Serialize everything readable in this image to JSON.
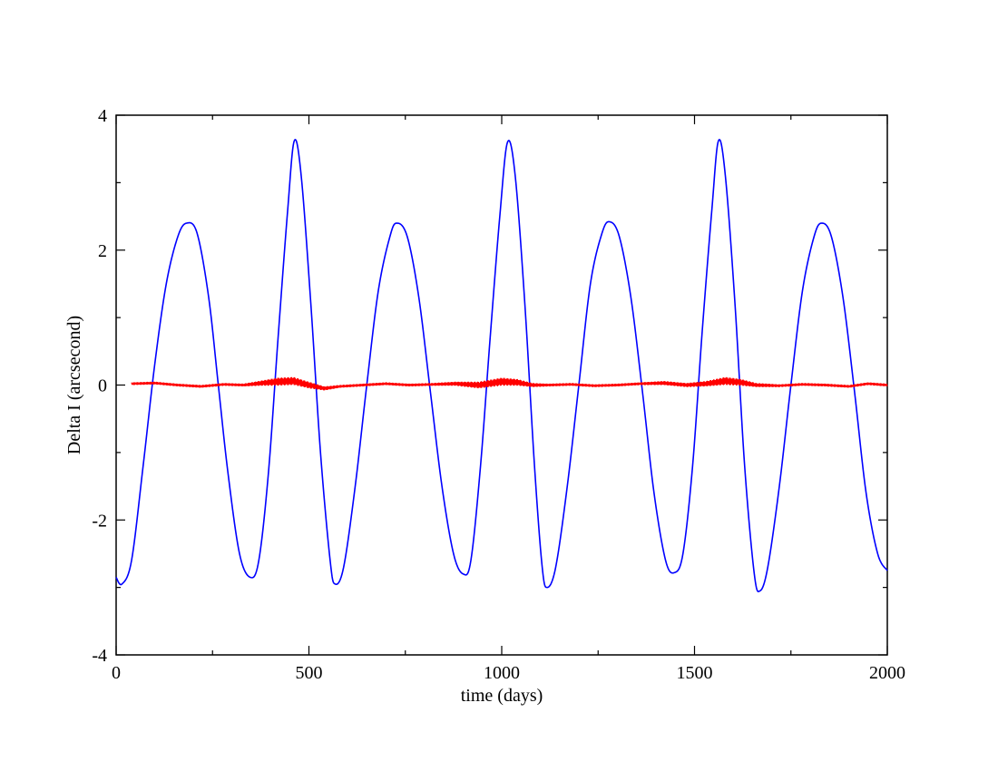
{
  "chart_data": {
    "type": "line",
    "title": "",
    "xlabel": "time (days)",
    "ylabel": "Delta I (arcsecond)",
    "xlim": [
      0,
      2000
    ],
    "ylim": [
      -4,
      4
    ],
    "x_ticks": [
      0,
      500,
      1000,
      1500,
      2000
    ],
    "x_tick_labels": [
      "0",
      "500",
      "1000",
      "1500",
      "2000"
    ],
    "y_ticks": [
      -4,
      -2,
      0,
      2,
      4
    ],
    "y_tick_labels": [
      "-4",
      "-2",
      "0",
      "2",
      "4"
    ],
    "x_minor_step": 250,
    "y_minor_step": 1,
    "grid": false,
    "legend": "none",
    "series": [
      {
        "color": "#0000ff",
        "x": [
          0,
          15,
          40,
          70,
          100,
          130,
          160,
          183,
          210,
          240,
          265,
          290,
          320,
          348,
          370,
          395,
          420,
          445,
          462,
          480,
          505,
          530,
          555,
          568,
          590,
          620,
          650,
          680,
          710,
          728,
          755,
          785,
          815,
          845,
          875,
          900,
          920,
          945,
          970,
          995,
          1015,
          1035,
          1060,
          1085,
          1105,
          1118,
          1140,
          1170,
          1200,
          1230,
          1260,
          1280,
          1305,
          1335,
          1365,
          1395,
          1425,
          1448,
          1470,
          1495,
          1520,
          1545,
          1562,
          1580,
          1605,
          1630,
          1655,
          1670,
          1690,
          1720,
          1750,
          1780,
          1810,
          1830,
          1855,
          1885,
          1915,
          1945,
          1975,
          2000
        ],
        "y": [
          -2.85,
          -2.95,
          -2.6,
          -1.2,
          0.3,
          1.5,
          2.2,
          2.4,
          2.25,
          1.3,
          0.0,
          -1.3,
          -2.5,
          -2.85,
          -2.6,
          -1.3,
          0.7,
          2.6,
          3.62,
          3.1,
          1.2,
          -1.0,
          -2.6,
          -2.95,
          -2.7,
          -1.5,
          0.0,
          1.4,
          2.2,
          2.4,
          2.2,
          1.3,
          -0.1,
          -1.5,
          -2.5,
          -2.8,
          -2.6,
          -1.2,
          0.7,
          2.5,
          3.6,
          3.1,
          1.2,
          -1.2,
          -2.7,
          -3.0,
          -2.7,
          -1.5,
          0.0,
          1.5,
          2.25,
          2.42,
          2.2,
          1.3,
          -0.1,
          -1.6,
          -2.6,
          -2.78,
          -2.5,
          -1.2,
          0.8,
          2.6,
          3.62,
          3.1,
          1.2,
          -1.2,
          -2.8,
          -3.05,
          -2.7,
          -1.5,
          0.0,
          1.4,
          2.2,
          2.4,
          2.2,
          1.3,
          -0.1,
          -1.6,
          -2.5,
          -2.75
        ]
      },
      {
        "color": "#ff0000",
        "x": [
          40,
          100,
          160,
          220,
          280,
          330,
          380,
          420,
          460,
          500,
          540,
          580,
          640,
          700,
          760,
          820,
          880,
          940,
          1000,
          1040,
          1080,
          1120,
          1180,
          1240,
          1300,
          1360,
          1420,
          1480,
          1530,
          1580,
          1620,
          1660,
          1720,
          1780,
          1840,
          1900,
          1950,
          2000
        ],
        "y": [
          0.02,
          0.03,
          0.0,
          -0.02,
          0.01,
          0.0,
          0.03,
          0.05,
          0.06,
          0.0,
          -0.05,
          -0.02,
          0.0,
          0.02,
          0.0,
          0.01,
          0.02,
          0.0,
          0.05,
          0.04,
          0.0,
          0.0,
          0.01,
          -0.01,
          0.0,
          0.02,
          0.03,
          0.0,
          0.02,
          0.06,
          0.04,
          0.0,
          -0.01,
          0.01,
          0.0,
          -0.02,
          0.02,
          0.0
        ],
        "noise_amplitude": [
          0.02,
          0.02,
          0.02,
          0.02,
          0.02,
          0.02,
          0.04,
          0.06,
          0.06,
          0.05,
          0.03,
          0.02,
          0.02,
          0.02,
          0.02,
          0.02,
          0.03,
          0.05,
          0.06,
          0.05,
          0.03,
          0.02,
          0.02,
          0.02,
          0.02,
          0.02,
          0.03,
          0.03,
          0.04,
          0.06,
          0.05,
          0.03,
          0.02,
          0.02,
          0.02,
          0.02,
          0.02,
          0.02
        ]
      }
    ]
  }
}
